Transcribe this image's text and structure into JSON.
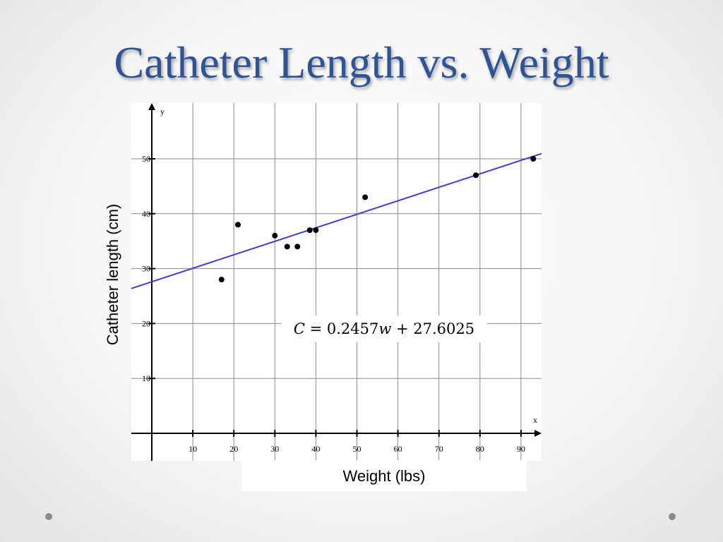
{
  "slide": {
    "title": "Catheter Length vs. Weight"
  },
  "chart_data": {
    "type": "scatter",
    "title": "Catheter Length vs. Weight",
    "xlabel": "Weight (lbs)",
    "ylabel": "Catheter length (cm)",
    "x_axis_letter": "x",
    "y_axis_letter": "y",
    "xlim": [
      -5,
      95
    ],
    "ylim": [
      -5,
      60
    ],
    "x_ticks": [
      10,
      20,
      30,
      40,
      50,
      60,
      70,
      80,
      90
    ],
    "y_ticks": [
      10,
      20,
      30,
      40,
      50
    ],
    "grid": true,
    "series": [
      {
        "points": [
          {
            "x": 17,
            "y": 28
          },
          {
            "x": 21,
            "y": 38
          },
          {
            "x": 30,
            "y": 36
          },
          {
            "x": 33,
            "y": 34
          },
          {
            "x": 35.5,
            "y": 34
          },
          {
            "x": 38.5,
            "y": 37
          },
          {
            "x": 40,
            "y": 37
          },
          {
            "x": 52,
            "y": 43
          },
          {
            "x": 79,
            "y": 47
          },
          {
            "x": 93,
            "y": 50
          }
        ]
      }
    ],
    "regression": {
      "slope": 0.2457,
      "intercept": 27.6025,
      "equation": "C = 0.2457w + 27.6025",
      "color": "#3f3fd4"
    },
    "colors": {
      "points": "#000000",
      "grid": "#8c8c8c",
      "axes": "#000000"
    }
  }
}
